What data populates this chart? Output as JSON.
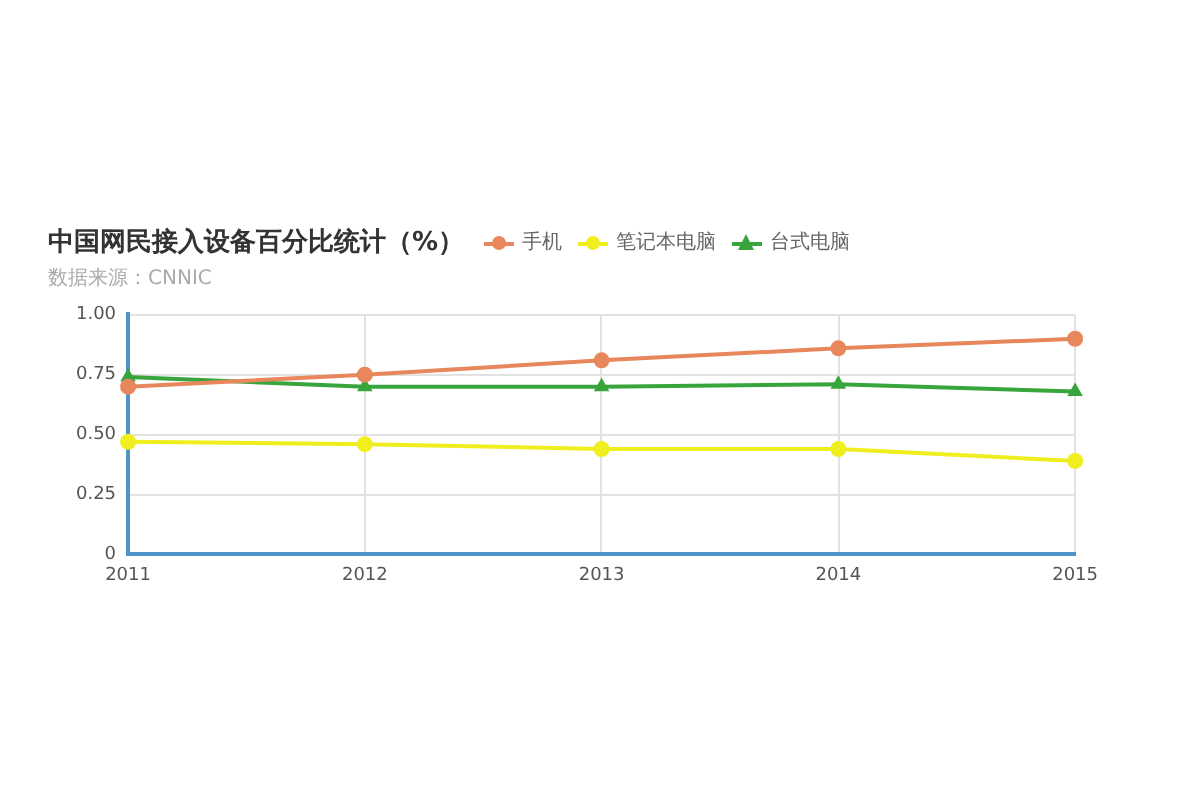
{
  "chart_data": {
    "type": "line",
    "title": "中国网民接入设备百分比统计（%）",
    "annotations": [
      "数据来源：CNNIC"
    ],
    "categories": [
      "2011",
      "2012",
      "2013",
      "2014",
      "2015"
    ],
    "series": [
      {
        "name": "手机",
        "color": "#e8865c",
        "marker": "circle",
        "values": [
          0.7,
          0.75,
          0.81,
          0.86,
          0.9
        ]
      },
      {
        "name": "笔记本电脑",
        "color": "#f0ee1e",
        "marker": "circle",
        "values": [
          0.47,
          0.46,
          0.44,
          0.44,
          0.39
        ]
      },
      {
        "name": "台式电脑",
        "color": "#38a43c",
        "marker": "triangle",
        "values": [
          0.74,
          0.7,
          0.7,
          0.71,
          0.68
        ]
      }
    ],
    "ylim": [
      0,
      1
    ],
    "yticks": [
      0,
      0.25,
      {
        "value": 0.5,
        "label": "0.50"
      },
      0.75,
      {
        "value": 1,
        "label": "1.00"
      }
    ],
    "grid": true,
    "legend": "top",
    "line_style": "solid"
  }
}
